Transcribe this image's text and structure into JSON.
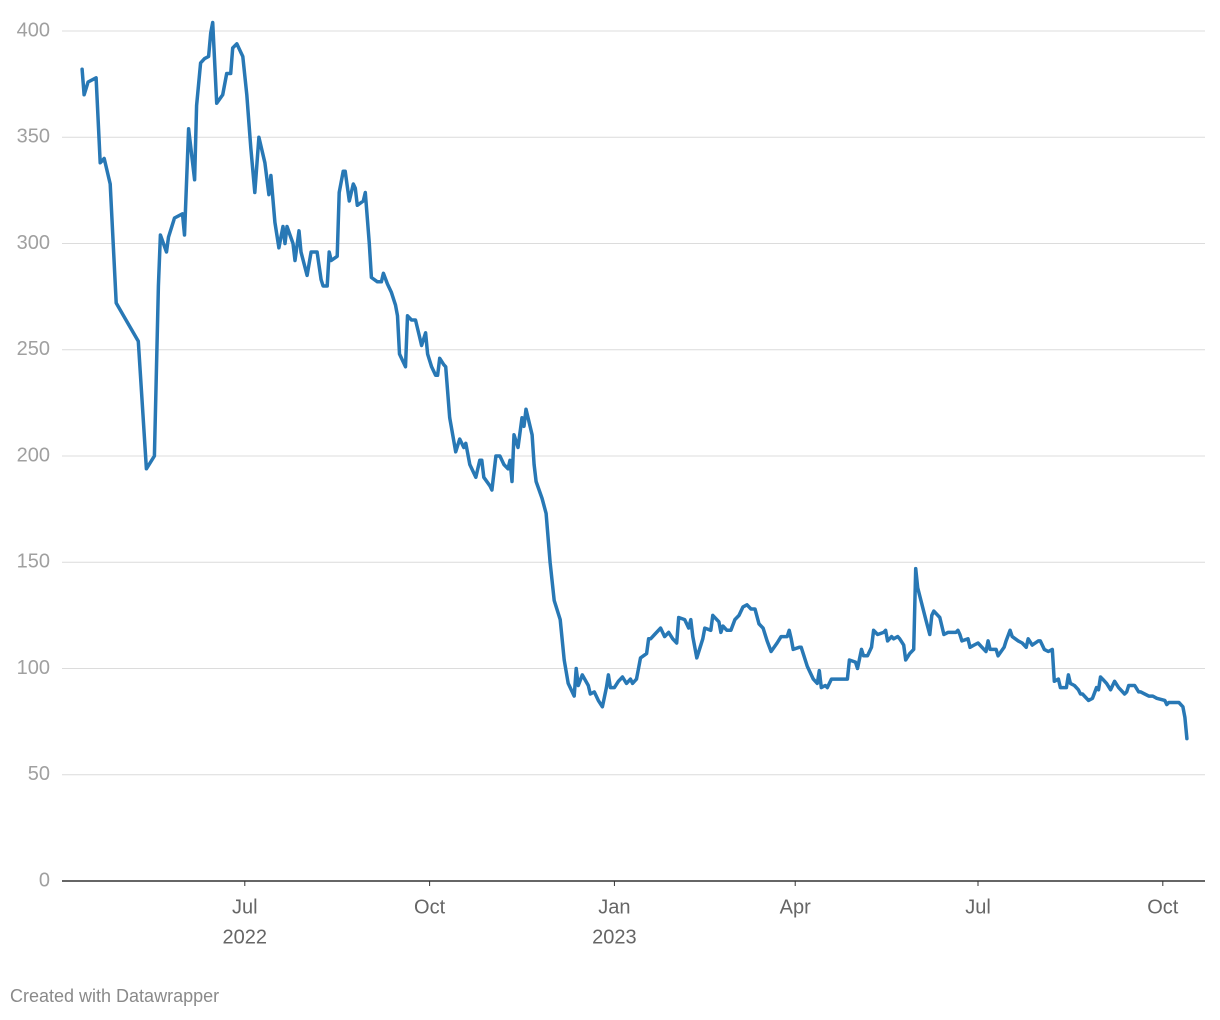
{
  "chart_data": {
    "type": "line",
    "color": "#2878b5",
    "credit": "Created with Datawrapper",
    "ylim": [
      0,
      400
    ],
    "yticks": [
      0,
      50,
      100,
      150,
      200,
      250,
      300,
      350,
      400
    ],
    "grid": true,
    "xlim": [
      "2022-04-01",
      "2023-10-22"
    ],
    "xticks": [
      {
        "value": "2022-07-01",
        "label": "Jul",
        "year": "2022"
      },
      {
        "value": "2022-10-01",
        "label": "Oct"
      },
      {
        "value": "2023-01-01",
        "label": "Jan",
        "year": "2023"
      },
      {
        "value": "2023-04-01",
        "label": "Apr"
      },
      {
        "value": "2023-07-01",
        "label": "Jul"
      },
      {
        "value": "2023-10-01",
        "label": "Oct"
      }
    ],
    "x": [
      "2022-04-11",
      "2022-04-12",
      "2022-04-14",
      "2022-04-18",
      "2022-04-20",
      "2022-04-22",
      "2022-04-25",
      "2022-04-28",
      "2022-05-09",
      "2022-05-13",
      "2022-05-17",
      "2022-05-19",
      "2022-05-20",
      "2022-05-23",
      "2022-05-24",
      "2022-05-27",
      "2022-05-31",
      "2022-06-01",
      "2022-06-03",
      "2022-06-06",
      "2022-06-07",
      "2022-06-09",
      "2022-06-11",
      "2022-06-13",
      "2022-06-14",
      "2022-06-15",
      "2022-06-17",
      "2022-06-20",
      "2022-06-22",
      "2022-06-24",
      "2022-06-25",
      "2022-06-27",
      "2022-06-30",
      "2022-07-02",
      "2022-07-04",
      "2022-07-06",
      "2022-07-08",
      "2022-07-11",
      "2022-07-13",
      "2022-07-14",
      "2022-07-16",
      "2022-07-18",
      "2022-07-20",
      "2022-07-21",
      "2022-07-22",
      "2022-07-25",
      "2022-07-26",
      "2022-07-28",
      "2022-07-29",
      "2022-08-01",
      "2022-08-03",
      "2022-08-06",
      "2022-08-08",
      "2022-08-09",
      "2022-08-11",
      "2022-08-12",
      "2022-08-13",
      "2022-08-16",
      "2022-08-17",
      "2022-08-19",
      "2022-08-20",
      "2022-08-22",
      "2022-08-24",
      "2022-08-25",
      "2022-08-26",
      "2022-08-29",
      "2022-08-30",
      "2022-09-01",
      "2022-09-02",
      "2022-09-05",
      "2022-09-07",
      "2022-09-08",
      "2022-09-10",
      "2022-09-12",
      "2022-09-14",
      "2022-09-15",
      "2022-09-16",
      "2022-09-19",
      "2022-09-20",
      "2022-09-22",
      "2022-09-24",
      "2022-09-26",
      "2022-09-27",
      "2022-09-29",
      "2022-09-30",
      "2022-10-02",
      "2022-10-04",
      "2022-10-05",
      "2022-10-06",
      "2022-10-08",
      "2022-10-09",
      "2022-10-11",
      "2022-10-14",
      "2022-10-16",
      "2022-10-18",
      "2022-10-19",
      "2022-10-21",
      "2022-10-24",
      "2022-10-26",
      "2022-10-27",
      "2022-10-28",
      "2022-10-31",
      "2022-11-01",
      "2022-11-03",
      "2022-11-05",
      "2022-11-07",
      "2022-11-09",
      "2022-11-10",
      "2022-11-11",
      "2022-11-12",
      "2022-11-14",
      "2022-11-16",
      "2022-11-17",
      "2022-11-18",
      "2022-11-21",
      "2022-11-22",
      "2022-11-23",
      "2022-11-26",
      "2022-11-28",
      "2022-11-30",
      "2022-12-02",
      "2022-12-05",
      "2022-12-07",
      "2022-12-09",
      "2022-12-12",
      "2022-12-13",
      "2022-12-14",
      "2022-12-16",
      "2022-12-19",
      "2022-12-20",
      "2022-12-22",
      "2022-12-24",
      "2022-12-26",
      "2022-12-28",
      "2022-12-29",
      "2022-12-30",
      "2023-01-01",
      "2023-01-03",
      "2023-01-05",
      "2023-01-07",
      "2023-01-09",
      "2023-01-10",
      "2023-01-12",
      "2023-01-14",
      "2023-01-17",
      "2023-01-18",
      "2023-01-19",
      "2023-01-21",
      "2023-01-24",
      "2023-01-26",
      "2023-01-28",
      "2023-01-30",
      "2023-02-01",
      "2023-02-02",
      "2023-02-05",
      "2023-02-07",
      "2023-02-08",
      "2023-02-09",
      "2023-02-11",
      "2023-02-14",
      "2023-02-15",
      "2023-02-18",
      "2023-02-19",
      "2023-02-22",
      "2023-02-23",
      "2023-02-24",
      "2023-02-26",
      "2023-02-28",
      "2023-03-02",
      "2023-03-04",
      "2023-03-06",
      "2023-03-08",
      "2023-03-10",
      "2023-03-12",
      "2023-03-14",
      "2023-03-16",
      "2023-03-18",
      "2023-03-20",
      "2023-03-23",
      "2023-03-25",
      "2023-03-28",
      "2023-03-29",
      "2023-03-30",
      "2023-03-31",
      "2023-04-03",
      "2023-04-04",
      "2023-04-07",
      "2023-04-10",
      "2023-04-12",
      "2023-04-13",
      "2023-04-14",
      "2023-04-16",
      "2023-04-17",
      "2023-04-19",
      "2023-04-27",
      "2023-04-28",
      "2023-05-01",
      "2023-05-02",
      "2023-05-04",
      "2023-05-05",
      "2023-05-07",
      "2023-05-09",
      "2023-05-10",
      "2023-05-12",
      "2023-05-15",
      "2023-05-16",
      "2023-05-17",
      "2023-05-19",
      "2023-05-20",
      "2023-05-22",
      "2023-05-23",
      "2023-05-25",
      "2023-05-26",
      "2023-05-28",
      "2023-05-30",
      "2023-05-31",
      "2023-06-01",
      "2023-06-05",
      "2023-06-07",
      "2023-06-08",
      "2023-06-09",
      "2023-06-12",
      "2023-06-14",
      "2023-06-16",
      "2023-06-18",
      "2023-06-20",
      "2023-06-21",
      "2023-06-22",
      "2023-06-23",
      "2023-06-26",
      "2023-06-27",
      "2023-06-29",
      "2023-07-01",
      "2023-07-03",
      "2023-07-05",
      "2023-07-06",
      "2023-07-07",
      "2023-07-09",
      "2023-07-10",
      "2023-07-11",
      "2023-07-14",
      "2023-07-15",
      "2023-07-17",
      "2023-07-18",
      "2023-07-21",
      "2023-07-23",
      "2023-07-25",
      "2023-07-26",
      "2023-07-28",
      "2023-07-31",
      "2023-08-01",
      "2023-08-03",
      "2023-08-05",
      "2023-08-07",
      "2023-08-08",
      "2023-08-10",
      "2023-08-11",
      "2023-08-14",
      "2023-08-15",
      "2023-08-16",
      "2023-08-18",
      "2023-08-20",
      "2023-08-21",
      "2023-08-22",
      "2023-08-25",
      "2023-08-27",
      "2023-08-29",
      "2023-08-30",
      "2023-08-31",
      "2023-09-01",
      "2023-09-03",
      "2023-09-05",
      "2023-09-07",
      "2023-09-09",
      "2023-09-12",
      "2023-09-13",
      "2023-09-14",
      "2023-09-17",
      "2023-09-19",
      "2023-09-20",
      "2023-09-24",
      "2023-09-26",
      "2023-09-28",
      "2023-10-02",
      "2023-10-03",
      "2023-10-04",
      "2023-10-07",
      "2023-10-09",
      "2023-10-11",
      "2023-10-12",
      "2023-10-13"
    ],
    "values": [
      382,
      370,
      376,
      378,
      338,
      340,
      328,
      272,
      254,
      194,
      200,
      280,
      304,
      296,
      303,
      312,
      314,
      304,
      354,
      330,
      365,
      385,
      387,
      388,
      399,
      404,
      366,
      370,
      380,
      380,
      392,
      394,
      388,
      370,
      345,
      324,
      350,
      338,
      323,
      332,
      310,
      298,
      308,
      300,
      308,
      300,
      292,
      306,
      296,
      285,
      296,
      296,
      283,
      280,
      280,
      296,
      292,
      294,
      324,
      334,
      334,
      320,
      328,
      326,
      318,
      320,
      324,
      300,
      284,
      282,
      282,
      286,
      281,
      277,
      271,
      266,
      248,
      242,
      266,
      264,
      264,
      256,
      252,
      258,
      248,
      242,
      238,
      238,
      246,
      243,
      242,
      218,
      202,
      208,
      204,
      206,
      196,
      190,
      198,
      198,
      190,
      186,
      184,
      200,
      200,
      196,
      194,
      198,
      188,
      210,
      204,
      218,
      214,
      222,
      210,
      196,
      188,
      180,
      173,
      150,
      132,
      123,
      104,
      93,
      87,
      100,
      92,
      97,
      92,
      88,
      89,
      85,
      82,
      91,
      97,
      91,
      91,
      94,
      96,
      93,
      95,
      93,
      95,
      105,
      107,
      114,
      114,
      116,
      119,
      115,
      117,
      114,
      112,
      124,
      123,
      119,
      123,
      115,
      105,
      114,
      119,
      118,
      125,
      122,
      117,
      120,
      118,
      118,
      123,
      125,
      129,
      130,
      128,
      128,
      121,
      119,
      113,
      108,
      112,
      115,
      115,
      118,
      114,
      109,
      110,
      110,
      101,
      95,
      93,
      99,
      91,
      92,
      91,
      95,
      95,
      104,
      103,
      100,
      109,
      106,
      106,
      110,
      118,
      116,
      117,
      118,
      113,
      115,
      114,
      115,
      114,
      111,
      104,
      107,
      109,
      147,
      138,
      123,
      116,
      125,
      127,
      124,
      116,
      117,
      117,
      117,
      118,
      116,
      113,
      114,
      110,
      111,
      112,
      110,
      108,
      113,
      109,
      109,
      109,
      106,
      110,
      113,
      118,
      115,
      113,
      112,
      110,
      114,
      111,
      113,
      113,
      109,
      108,
      109,
      94,
      95,
      91,
      91,
      97,
      93,
      92,
      90,
      88,
      88,
      85,
      86,
      91,
      90,
      96,
      95,
      93,
      90,
      94,
      91,
      88,
      89,
      92,
      92,
      89,
      89,
      87,
      87,
      86,
      85,
      83,
      84,
      84,
      84,
      82,
      77,
      67
    ]
  }
}
